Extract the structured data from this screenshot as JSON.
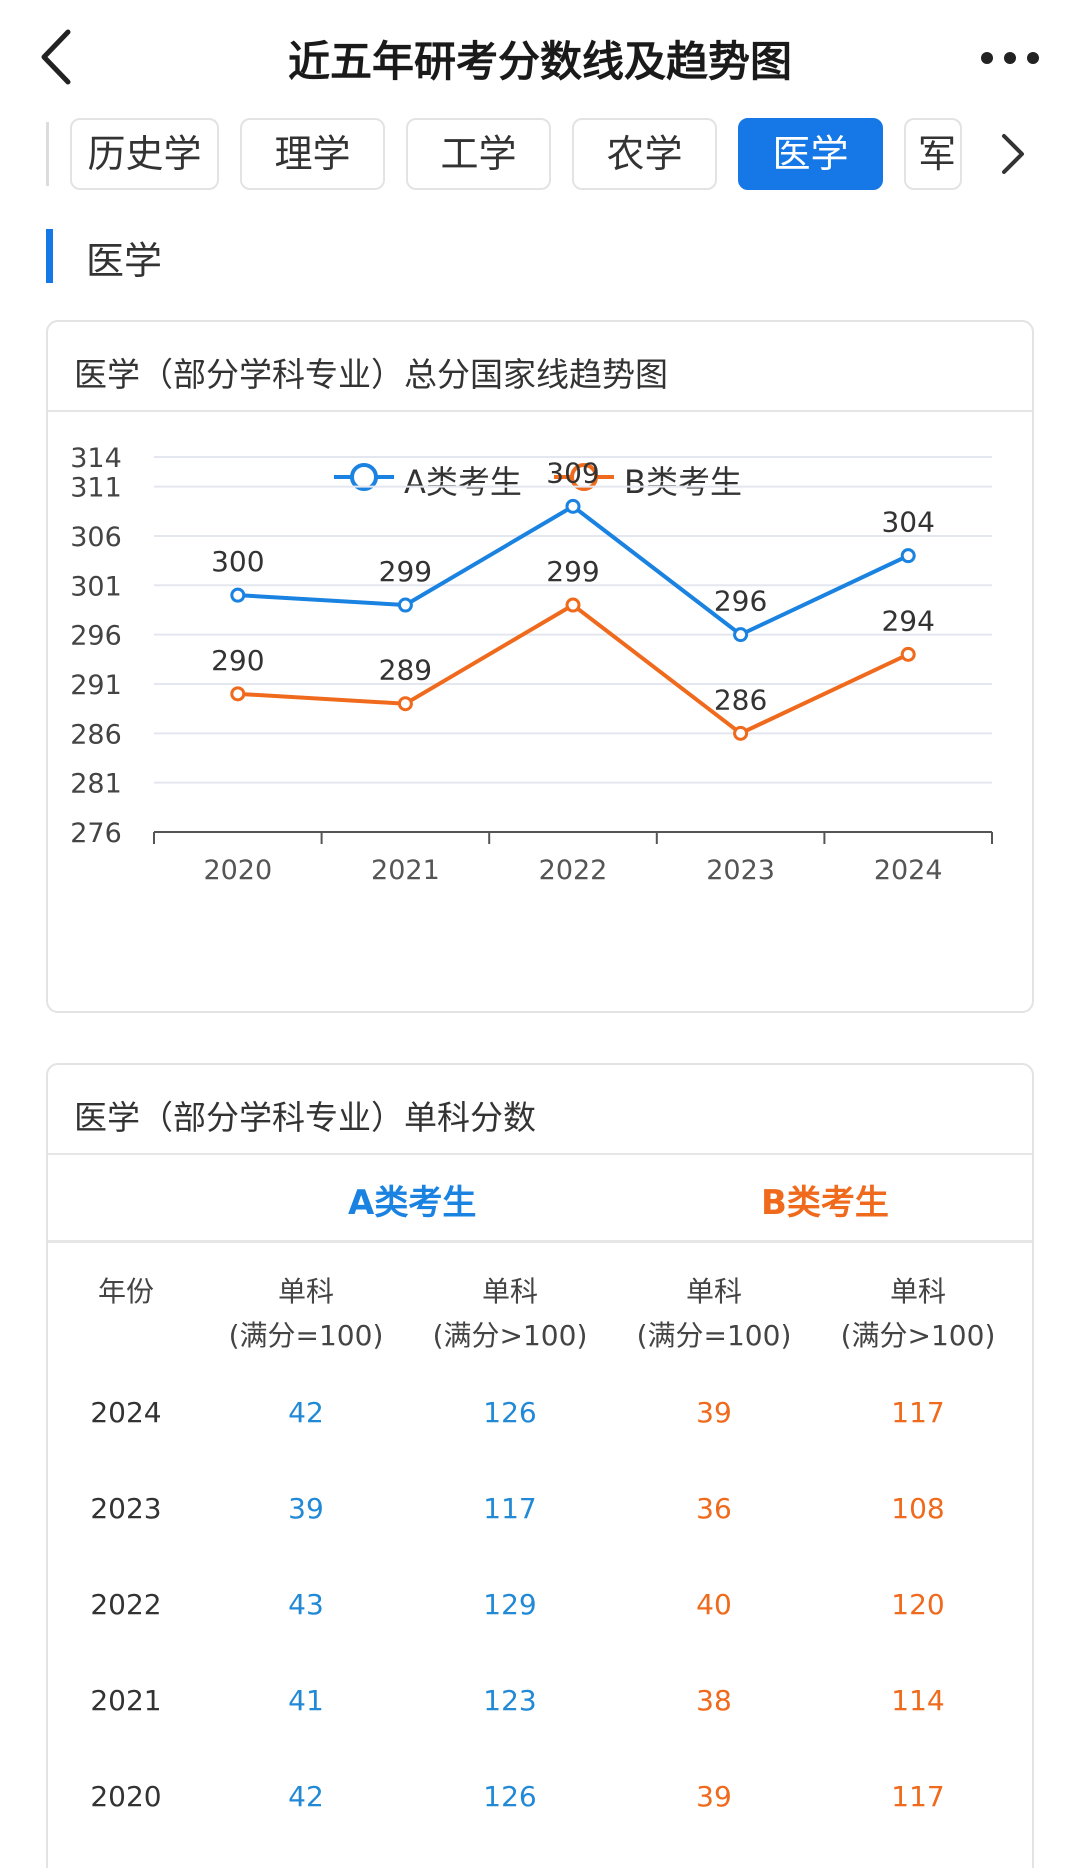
{
  "header": {
    "title": "近五年研考分数线及趋势图"
  },
  "tabs": [
    {
      "label": "历史学",
      "active": false
    },
    {
      "label": "理学",
      "active": false
    },
    {
      "label": "工学",
      "active": false
    },
    {
      "label": "农学",
      "active": false
    },
    {
      "label": "医学",
      "active": true
    },
    {
      "label": "军",
      "active": false
    }
  ],
  "section": {
    "title": "医学"
  },
  "trend_card": {
    "title": "医学（部分学科专业）总分国家线趋势图"
  },
  "chart_data": {
    "type": "line",
    "title": "医学（部分学科专业）总分国家线趋势图",
    "categories": [
      "2020",
      "2021",
      "2022",
      "2023",
      "2024"
    ],
    "series": [
      {
        "name": "A类考生",
        "color": "#1a82e0",
        "values": [
          300,
          299,
          309,
          296,
          304
        ]
      },
      {
        "name": "B类考生",
        "color": "#ef6a1c",
        "values": [
          290,
          289,
          299,
          286,
          294
        ]
      }
    ],
    "y_ticks": [
      276,
      281,
      286,
      291,
      296,
      301,
      306,
      311,
      314
    ],
    "ylim": [
      276,
      314
    ],
    "legend": "top-center",
    "grid": true
  },
  "score_card": {
    "title": "医学（部分学科专业）单科分数",
    "group_a": "A类考生",
    "group_b": "B类考生",
    "columns": [
      "年份",
      "单科\n(满分=100)",
      "单科\n(满分>100)",
      "单科\n(满分=100)",
      "单科\n(满分>100)"
    ],
    "rows": [
      {
        "year": "2024",
        "a100": "42",
        "a_over": "126",
        "b100": "39",
        "b_over": "117"
      },
      {
        "year": "2023",
        "a100": "39",
        "a_over": "117",
        "b100": "36",
        "b_over": "108"
      },
      {
        "year": "2022",
        "a100": "43",
        "a_over": "129",
        "b100": "40",
        "b_over": "120"
      },
      {
        "year": "2021",
        "a100": "41",
        "a_over": "123",
        "b100": "38",
        "b_over": "114"
      },
      {
        "year": "2020",
        "a100": "42",
        "a_over": "126",
        "b100": "39",
        "b_over": "117"
      }
    ]
  }
}
